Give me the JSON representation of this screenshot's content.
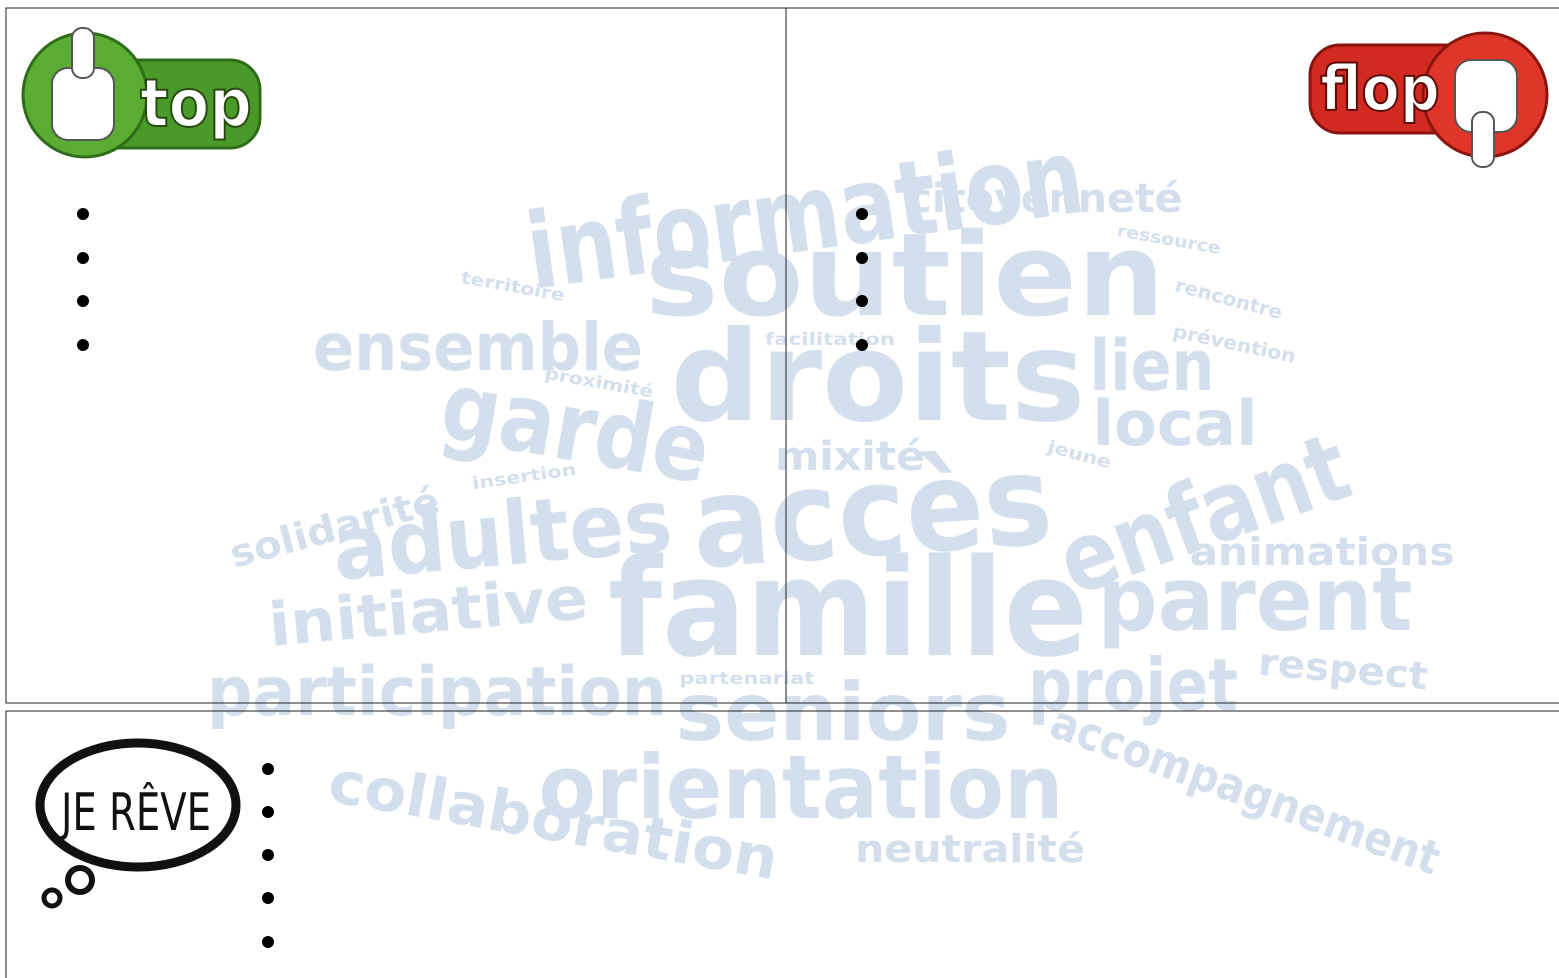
{
  "badges": {
    "top": "top",
    "flop": "flop",
    "dream": "JE RÊVE"
  },
  "word_cloud": [
    "information",
    "citoyenneté",
    "ressource",
    "territoire",
    "soutien",
    "rencontre",
    "ensemble",
    "facilitation",
    "prévention",
    "lien",
    "proximité",
    "droits",
    "garde",
    "local",
    "mixité",
    "jeune",
    "solidarité",
    "insertion",
    "accès",
    "adultes",
    "enfant",
    "animations",
    "initiative",
    "famille",
    "parent",
    "respect",
    "participation",
    "partenariat",
    "seniors",
    "projet",
    "orientation",
    "accompagnement",
    "collaboration",
    "neutralité"
  ]
}
